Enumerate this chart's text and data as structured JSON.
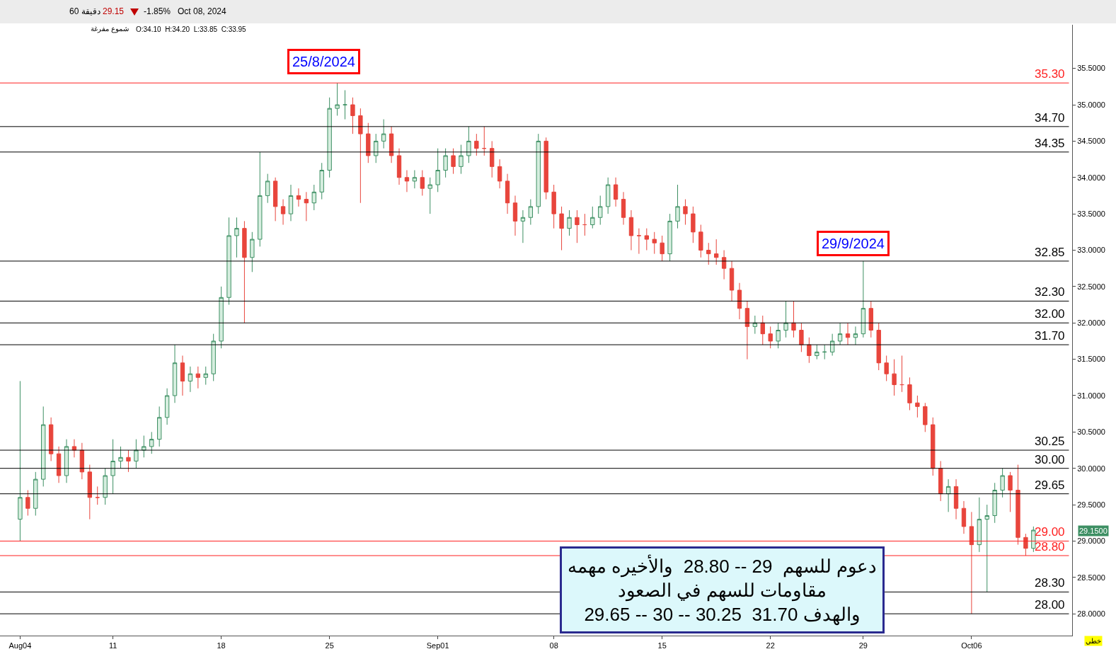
{
  "chart_data": {
    "type": "candlestick",
    "categories": [
      "Aug04",
      null,
      null,
      null,
      null,
      null,
      null,
      null,
      null,
      null,
      null,
      null,
      "11",
      null,
      null,
      null,
      null,
      null,
      null,
      null,
      null,
      null,
      null,
      null,
      null,
      null,
      "18",
      null,
      null,
      null,
      null,
      null,
      null,
      null,
      null,
      null,
      null,
      null,
      null,
      null,
      "25",
      null,
      null,
      null,
      null,
      null,
      null,
      null,
      null,
      null,
      null,
      null,
      null,
      null,
      "Sep01",
      null,
      null,
      null,
      null,
      null,
      null,
      null,
      null,
      null,
      null,
      null,
      null,
      null,
      null,
      "08",
      null,
      null,
      null,
      null,
      null,
      null,
      null,
      null,
      null,
      null,
      null,
      null,
      null,
      "15",
      null,
      null,
      null,
      null,
      null,
      null,
      null,
      null,
      null,
      null,
      null,
      null,
      null,
      "22",
      null,
      null,
      null,
      null,
      null,
      null,
      null,
      null,
      null,
      null,
      null,
      "29",
      null,
      null,
      null,
      null,
      null,
      null,
      null,
      null,
      null,
      null,
      null,
      null,
      null,
      "Oct06",
      null,
      null,
      null,
      null,
      null,
      null,
      null,
      null
    ],
    "ohlc": [
      [
        29.3,
        31.2,
        29.0,
        29.6
      ],
      [
        29.6,
        29.7,
        29.35,
        29.45
      ],
      [
        29.45,
        29.95,
        29.35,
        29.85
      ],
      [
        29.85,
        30.85,
        29.75,
        30.6
      ],
      [
        30.6,
        30.7,
        30.1,
        30.2
      ],
      [
        30.2,
        30.3,
        29.8,
        29.9
      ],
      [
        29.9,
        30.4,
        29.8,
        30.3
      ],
      [
        30.3,
        30.4,
        30.15,
        30.25
      ],
      [
        30.25,
        30.35,
        29.85,
        29.95
      ],
      [
        29.95,
        30.05,
        29.3,
        29.6
      ],
      [
        29.6,
        29.75,
        29.5,
        29.6
      ],
      [
        29.6,
        30.0,
        29.5,
        29.9
      ],
      [
        29.9,
        30.4,
        29.65,
        30.1
      ],
      [
        30.1,
        30.3,
        30.0,
        30.15
      ],
      [
        30.15,
        30.25,
        29.95,
        30.1
      ],
      [
        30.1,
        30.4,
        30.0,
        30.25
      ],
      [
        30.25,
        30.45,
        30.15,
        30.3
      ],
      [
        30.3,
        30.5,
        30.2,
        30.4
      ],
      [
        30.4,
        30.85,
        30.3,
        30.7
      ],
      [
        30.7,
        31.1,
        30.6,
        31.0
      ],
      [
        31.0,
        31.7,
        30.9,
        31.45
      ],
      [
        31.45,
        31.55,
        31.0,
        31.2
      ],
      [
        31.2,
        31.4,
        31.05,
        31.3
      ],
      [
        31.3,
        31.4,
        31.1,
        31.25
      ],
      [
        31.25,
        31.4,
        31.15,
        31.3
      ],
      [
        31.3,
        31.85,
        31.2,
        31.75
      ],
      [
        31.75,
        32.5,
        31.65,
        32.35
      ],
      [
        32.35,
        33.45,
        32.25,
        33.2
      ],
      [
        33.2,
        33.45,
        32.9,
        33.3
      ],
      [
        33.3,
        33.4,
        32.0,
        32.9
      ],
      [
        32.9,
        33.25,
        32.7,
        33.15
      ],
      [
        33.15,
        34.35,
        33.05,
        33.75
      ],
      [
        33.75,
        34.05,
        33.65,
        33.95
      ],
      [
        33.95,
        34.0,
        33.4,
        33.6
      ],
      [
        33.6,
        33.7,
        33.35,
        33.5
      ],
      [
        33.5,
        33.9,
        33.4,
        33.75
      ],
      [
        33.75,
        33.85,
        33.6,
        33.7
      ],
      [
        33.7,
        33.8,
        33.4,
        33.65
      ],
      [
        33.65,
        33.9,
        33.55,
        33.8
      ],
      [
        33.8,
        34.2,
        33.7,
        34.1
      ],
      [
        34.1,
        35.1,
        34.0,
        34.95
      ],
      [
        34.95,
        35.3,
        34.85,
        35.0
      ],
      [
        35.0,
        35.2,
        34.8,
        35.0
      ],
      [
        35.0,
        35.1,
        34.6,
        34.85
      ],
      [
        34.85,
        34.95,
        33.65,
        34.6
      ],
      [
        34.6,
        34.75,
        34.2,
        34.3
      ],
      [
        34.3,
        34.6,
        34.2,
        34.5
      ],
      [
        34.5,
        34.8,
        34.4,
        34.6
      ],
      [
        34.6,
        34.7,
        34.2,
        34.3
      ],
      [
        34.3,
        34.4,
        33.9,
        34.0
      ],
      [
        34.0,
        34.1,
        33.8,
        33.95
      ],
      [
        33.95,
        34.1,
        33.85,
        34.0
      ],
      [
        34.0,
        34.1,
        33.75,
        33.85
      ],
      [
        33.85,
        34.0,
        33.5,
        33.9
      ],
      [
        33.9,
        34.4,
        33.8,
        34.1
      ],
      [
        34.1,
        34.4,
        34.0,
        34.3
      ],
      [
        34.3,
        34.4,
        34.05,
        34.15
      ],
      [
        34.15,
        34.45,
        34.05,
        34.3
      ],
      [
        34.3,
        34.7,
        34.2,
        34.5
      ],
      [
        34.5,
        34.6,
        34.3,
        34.4
      ],
      [
        34.4,
        34.7,
        34.3,
        34.4
      ],
      [
        34.4,
        34.5,
        34.0,
        34.15
      ],
      [
        34.15,
        34.25,
        33.85,
        33.95
      ],
      [
        33.95,
        34.05,
        33.5,
        33.65
      ],
      [
        33.65,
        33.75,
        33.2,
        33.4
      ],
      [
        33.4,
        33.55,
        33.1,
        33.45
      ],
      [
        33.45,
        33.7,
        33.35,
        33.6
      ],
      [
        33.6,
        34.6,
        33.5,
        34.5
      ],
      [
        34.5,
        34.55,
        33.7,
        33.8
      ],
      [
        33.8,
        33.9,
        33.3,
        33.5
      ],
      [
        33.5,
        33.6,
        33.0,
        33.3
      ],
      [
        33.3,
        33.55,
        33.2,
        33.45
      ],
      [
        33.45,
        33.55,
        33.1,
        33.35
      ],
      [
        33.35,
        33.5,
        33.2,
        33.35
      ],
      [
        33.35,
        33.6,
        33.3,
        33.45
      ],
      [
        33.45,
        33.75,
        33.35,
        33.6
      ],
      [
        33.6,
        34.0,
        33.5,
        33.9
      ],
      [
        33.9,
        34.0,
        33.6,
        33.7
      ],
      [
        33.7,
        33.8,
        33.35,
        33.45
      ],
      [
        33.45,
        33.55,
        33.0,
        33.2
      ],
      [
        33.2,
        33.3,
        32.95,
        33.2
      ],
      [
        33.2,
        33.3,
        33.0,
        33.15
      ],
      [
        33.15,
        33.25,
        32.95,
        33.1
      ],
      [
        33.1,
        33.2,
        32.85,
        32.95
      ],
      [
        32.95,
        33.5,
        32.85,
        33.4
      ],
      [
        33.4,
        33.9,
        33.3,
        33.6
      ],
      [
        33.6,
        33.7,
        33.35,
        33.5
      ],
      [
        33.5,
        33.6,
        33.1,
        33.25
      ],
      [
        33.25,
        33.35,
        32.9,
        33.0
      ],
      [
        33.0,
        33.1,
        32.8,
        32.95
      ],
      [
        32.95,
        33.15,
        32.8,
        32.9
      ],
      [
        32.9,
        33.0,
        32.6,
        32.75
      ],
      [
        32.75,
        32.85,
        32.3,
        32.45
      ],
      [
        32.45,
        32.55,
        32.05,
        32.2
      ],
      [
        32.2,
        32.3,
        31.5,
        31.95
      ],
      [
        31.95,
        32.1,
        31.85,
        32.0
      ],
      [
        32.0,
        32.1,
        31.7,
        31.85
      ],
      [
        31.85,
        31.95,
        31.65,
        31.75
      ],
      [
        31.75,
        32.0,
        31.65,
        31.9
      ],
      [
        31.9,
        32.3,
        31.8,
        32.0
      ],
      [
        32.0,
        32.3,
        31.8,
        31.9
      ],
      [
        31.9,
        32.0,
        31.6,
        31.7
      ],
      [
        31.7,
        31.8,
        31.45,
        31.55
      ],
      [
        31.55,
        31.7,
        31.5,
        31.6
      ],
      [
        31.6,
        31.7,
        31.5,
        31.6
      ],
      [
        31.6,
        31.85,
        31.55,
        31.75
      ],
      [
        31.75,
        32.0,
        31.7,
        31.85
      ],
      [
        31.85,
        32.0,
        31.7,
        31.8
      ],
      [
        31.8,
        31.95,
        31.7,
        31.85
      ],
      [
        31.85,
        32.85,
        31.8,
        32.2
      ],
      [
        32.2,
        32.3,
        31.8,
        31.9
      ],
      [
        31.9,
        32.0,
        31.35,
        31.45
      ],
      [
        31.45,
        31.55,
        31.2,
        31.3
      ],
      [
        31.3,
        31.5,
        31.0,
        31.15
      ],
      [
        31.15,
        31.55,
        31.05,
        31.15
      ],
      [
        31.15,
        31.25,
        30.8,
        30.9
      ],
      [
        30.9,
        31.0,
        30.7,
        30.85
      ],
      [
        30.85,
        30.9,
        30.5,
        30.6
      ],
      [
        30.6,
        30.7,
        29.9,
        30.0
      ],
      [
        30.0,
        30.1,
        29.55,
        29.65
      ],
      [
        29.65,
        29.85,
        29.4,
        29.75
      ],
      [
        29.75,
        29.85,
        29.3,
        29.45
      ],
      [
        29.45,
        29.55,
        29.1,
        29.2
      ],
      [
        29.2,
        29.4,
        28.0,
        28.95
      ],
      [
        28.95,
        29.6,
        28.85,
        29.3
      ],
      [
        29.3,
        29.5,
        28.3,
        29.35
      ],
      [
        29.35,
        29.8,
        29.25,
        29.7
      ],
      [
        29.7,
        30.0,
        29.6,
        29.9
      ],
      [
        29.9,
        29.95,
        29.4,
        29.7
      ],
      [
        29.7,
        30.05,
        28.95,
        29.05
      ],
      [
        29.05,
        29.1,
        28.8,
        28.9
      ],
      [
        28.9,
        29.2,
        28.85,
        29.15
      ]
    ],
    "ylim": [
      27.7,
      36.1
    ],
    "yticks": [
      {
        "value": 28,
        "label": "28.0000"
      },
      {
        "value": 28.5,
        "label": "28.5000"
      },
      {
        "value": 29,
        "label": "29.0000"
      },
      {
        "value": 29.5,
        "label": "29.5000"
      },
      {
        "value": 30,
        "label": "30.0000"
      },
      {
        "value": 30.5,
        "label": "30.5000"
      },
      {
        "value": 31,
        "label": "31.0000"
      },
      {
        "value": 31.5,
        "label": "31.5000"
      },
      {
        "value": 32,
        "label": "32.0000"
      },
      {
        "value": 32.5,
        "label": "32.5000"
      },
      {
        "value": 33,
        "label": "33.0000"
      },
      {
        "value": 33.5,
        "label": "33.5000"
      },
      {
        "value": 34,
        "label": "34.0000"
      },
      {
        "value": 34.5,
        "label": "34.5000"
      },
      {
        "value": 35,
        "label": "35.0000"
      },
      {
        "value": 35.5,
        "label": "35.5000"
      }
    ],
    "ref_lines": [
      {
        "axis": "y",
        "value": 35.3,
        "label": "35.30",
        "color": "#ff2020"
      },
      {
        "axis": "y",
        "value": 34.7,
        "label": "34.70",
        "color": "#000000"
      },
      {
        "axis": "y",
        "value": 34.35,
        "label": "34.35",
        "color": "#000000"
      },
      {
        "axis": "y",
        "value": 32.85,
        "label": "32.85",
        "color": "#000000"
      },
      {
        "axis": "y",
        "value": 32.3,
        "label": "32.30",
        "color": "#000000"
      },
      {
        "axis": "y",
        "value": 32.0,
        "label": "32.00",
        "color": "#000000"
      },
      {
        "axis": "y",
        "value": 31.7,
        "label": "31.70",
        "color": "#000000"
      },
      {
        "axis": "y",
        "value": 30.25,
        "label": "30.25",
        "color": "#000000"
      },
      {
        "axis": "y",
        "value": 30.0,
        "label": "30.00",
        "color": "#000000"
      },
      {
        "axis": "y",
        "value": 29.65,
        "label": "29.65",
        "color": "#000000"
      },
      {
        "axis": "y",
        "value": 29.0,
        "label": "29.00",
        "color": "#ff2020"
      },
      {
        "axis": "y",
        "value": 28.8,
        "label": "28.80",
        "color": "#ff2020"
      },
      {
        "axis": "y",
        "value": 28.3,
        "label": "28.30",
        "color": "#000000"
      },
      {
        "axis": "y",
        "value": 28.0,
        "label": "28.00",
        "color": "#000000"
      }
    ],
    "annotations": [
      "25/8/2024",
      "29/9/2024",
      "دعوم للسهم  29 -- 28.80  والأخيره مهمه\nمقاومات للسهم في الصعود\n29.65 -- 30 -- 30.25  والهدف 31.70",
      "60 دقيقة",
      "29.15",
      "-1.85%",
      "Oct 08, 2024",
      "شموع مفرغة",
      "O:34.10  H:34.20  L:33.85  C:33.95",
      "29.1500",
      "خطي"
    ]
  }
}
